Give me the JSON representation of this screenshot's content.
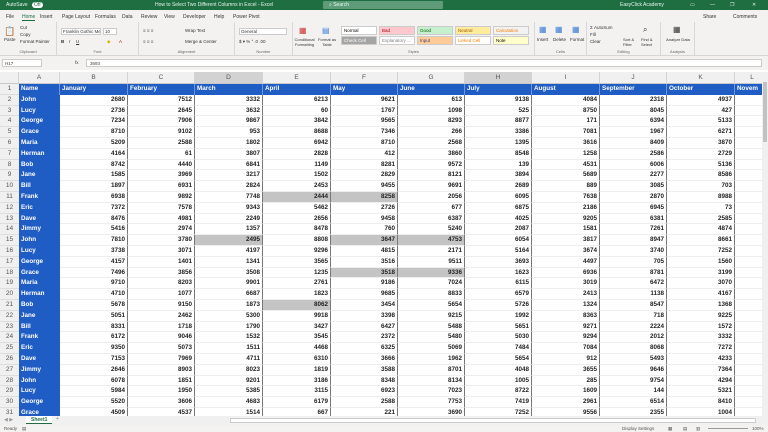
{
  "titlebar": {
    "autosave": "AutoSave",
    "autosave_state": "Off",
    "title": "How to Select Two Different Columns in Excel - Excel",
    "search_placeholder": "Search",
    "account": "EasyClick Academy"
  },
  "menu": {
    "tabs": [
      "File",
      "Home",
      "Insert",
      "Page Layout",
      "Formulas",
      "Data",
      "Review",
      "View",
      "Developer",
      "Help",
      "Power Pivot"
    ],
    "active": "Home",
    "share": "Share",
    "comments": "Comments"
  },
  "ribbon": {
    "clipboard": {
      "paste": "Paste",
      "cut": "Cut",
      "copy": "Copy",
      "format_painter": "Format Painter",
      "label": "Clipboard"
    },
    "font": {
      "name": "Franklin Gothic Me",
      "size": "10",
      "label": "Font"
    },
    "alignment": {
      "wrap": "Wrap Text",
      "merge": "Merge & Center",
      "label": "Alignment"
    },
    "number": {
      "format": "General",
      "label": "Number"
    },
    "styles": {
      "conditional": "Conditional Formatting",
      "format_table": "Format as Table",
      "cells": [
        {
          "name": "Normal",
          "bg": "#ffffff",
          "fg": "#000000"
        },
        {
          "name": "Bad",
          "bg": "#ffc7ce",
          "fg": "#9c0006"
        },
        {
          "name": "Good",
          "bg": "#c6efce",
          "fg": "#006100"
        },
        {
          "name": "Neutral",
          "bg": "#ffeb9c",
          "fg": "#9c5700"
        },
        {
          "name": "Calculation",
          "bg": "#f2f2f2",
          "fg": "#fa7d00"
        },
        {
          "name": "Check Cell",
          "bg": "#a5a5a5",
          "fg": "#ffffff"
        },
        {
          "name": "Explanatory ...",
          "bg": "#ffffff",
          "fg": "#7f7f7f"
        },
        {
          "name": "Input",
          "bg": "#ffcc99",
          "fg": "#3f3f76"
        },
        {
          "name": "Linked Cell",
          "bg": "#ffffff",
          "fg": "#fa7d00"
        },
        {
          "name": "Note",
          "bg": "#ffffcc",
          "fg": "#000000"
        }
      ],
      "label": "Styles"
    },
    "cells": {
      "insert": "Insert",
      "delete": "Delete",
      "format": "Format",
      "label": "Cells"
    },
    "editing": {
      "autosum": "AutoSum",
      "fill": "Fill",
      "clear": "Clear",
      "sort": "Sort & Filter",
      "find": "Find & Select",
      "label": "Editing"
    },
    "analysis": {
      "analyze": "Analyze Data",
      "label": "Analysis"
    }
  },
  "formula_bar": {
    "name_box": "H17",
    "fx": "fx",
    "formula": "3693"
  },
  "sheet": {
    "column_letters": [
      "A",
      "B",
      "C",
      "D",
      "E",
      "F",
      "G",
      "H",
      "I",
      "J",
      "K",
      "L"
    ],
    "selected_columns": [
      "D",
      "H"
    ],
    "headers": [
      "Name",
      "January",
      "February",
      "March",
      "April",
      "May",
      "June",
      "July",
      "August",
      "September",
      "October",
      "Novem"
    ],
    "names": [
      "John",
      "Lucy",
      "George",
      "Grace",
      "Maria",
      "Herman",
      "Bob",
      "Jane",
      "Bill",
      "Frank",
      "Eric",
      "Dave",
      "Jimmy",
      "John",
      "Lucy",
      "George",
      "Grace",
      "Maria",
      "Herman",
      "Bob",
      "Jane",
      "Bill",
      "Frank",
      "Eric",
      "Dave",
      "Jimmy",
      "John",
      "Lucy",
      "George",
      "Grace"
    ],
    "columns": {
      "January": [
        2680,
        2736,
        7234,
        8710,
        5209,
        4164,
        8742,
        1585,
        1897,
        6938,
        7372,
        8476,
        5416,
        7810,
        3738,
        4157,
        7496,
        9710,
        4710,
        5678,
        5051,
        8331,
        6172,
        9350,
        7153,
        2646,
        6078,
        5984,
        5520,
        4509
      ],
      "February": [
        7512,
        2645,
        7906,
        9102,
        2588,
        61,
        4440,
        3969,
        6931,
        9892,
        7578,
        4981,
        2974,
        3780,
        3071,
        1401,
        3856,
        8203,
        1077,
        9150,
        2462,
        1718,
        9046,
        5073,
        7969,
        8903,
        1851,
        1950,
        3606,
        4537
      ],
      "March": [
        3332,
        3632,
        9867,
        953,
        1802,
        3807,
        6841,
        3217,
        2824,
        7748,
        9343,
        2249,
        1357,
        2495,
        4197,
        1341,
        3508,
        9901,
        6687,
        1873,
        5300,
        1790,
        1532,
        1511,
        4711,
        8023,
        9201,
        5385,
        4683,
        1514
      ],
      "April": [
        6213,
        60,
        3842,
        8688,
        6942,
        2828,
        1149,
        1502,
        2453,
        2444,
        5462,
        2656,
        8478,
        8808,
        9296,
        3565,
        1235,
        2761,
        1823,
        8062,
        9918,
        3427,
        3545,
        4468,
        6310,
        1819,
        3186,
        3115,
        6179,
        667
      ],
      "May": [
        9621,
        1767,
        9565,
        7346,
        8710,
        412,
        8281,
        2829,
        9455,
        8258,
        2726,
        9458,
        760,
        3647,
        4815,
        3516,
        3518,
        9186,
        9685,
        3454,
        3398,
        6427,
        2372,
        6325,
        3666,
        3588,
        8348,
        6923,
        2588,
        221
      ],
      "June": [
        613,
        1098,
        8293,
        266,
        2568,
        3860,
        9572,
        8121,
        9691,
        2056,
        677,
        6387,
        5240,
        4753,
        2171,
        9511,
        9336,
        7024,
        8833,
        5654,
        9215,
        5488,
        5480,
        5069,
        1962,
        8701,
        8134,
        7023,
        7753,
        3690
      ],
      "July": [
        9138,
        525,
        8877,
        3386,
        1395,
        8548,
        139,
        3894,
        2689,
        6095,
        6875,
        4025,
        2087,
        6054,
        5164,
        3693,
        1623,
        6115,
        6579,
        5726,
        1992,
        5651,
        5030,
        7484,
        5654,
        4048,
        1005,
        8722,
        7419,
        7252
      ],
      "August": [
        4084,
        8750,
        171,
        7081,
        3616,
        1258,
        4531,
        5689,
        889,
        7638,
        2186,
        9205,
        1581,
        3817,
        3674,
        4497,
        6936,
        3019,
        2413,
        1324,
        8363,
        9271,
        9294,
        7084,
        912,
        3655,
        285,
        1609,
        2961,
        9556
      ],
      "September": [
        2318,
        8045,
        6394,
        1967,
        8409,
        2586,
        6006,
        2277,
        3085,
        2870,
        6945,
        6381,
        7261,
        8947,
        3740,
        705,
        8781,
        6472,
        1138,
        8547,
        718,
        2224,
        2012,
        8068,
        5493,
        9646,
        9754,
        144,
        6514,
        2355
      ],
      "October": [
        4937,
        427,
        5133,
        6271,
        3870,
        2729,
        5136,
        8586,
        703,
        8988,
        73,
        2585,
        4874,
        8661,
        7252,
        1560,
        3199,
        3070,
        4167,
        1368,
        9225,
        1572,
        3332,
        7272,
        4233,
        7364,
        4294,
        5321,
        8410,
        1004
      ]
    },
    "highlighted_cells": [
      "E11",
      "F11",
      "D15",
      "F15",
      "G15",
      "F18",
      "G18",
      "E21"
    ],
    "header_color": "#1f5cc4"
  },
  "sheet_tabs": {
    "tabs": [
      "Sheet1"
    ],
    "add": "+"
  },
  "status": {
    "ready": "Ready",
    "display_settings": "Display Settings",
    "zoom": "100%"
  }
}
